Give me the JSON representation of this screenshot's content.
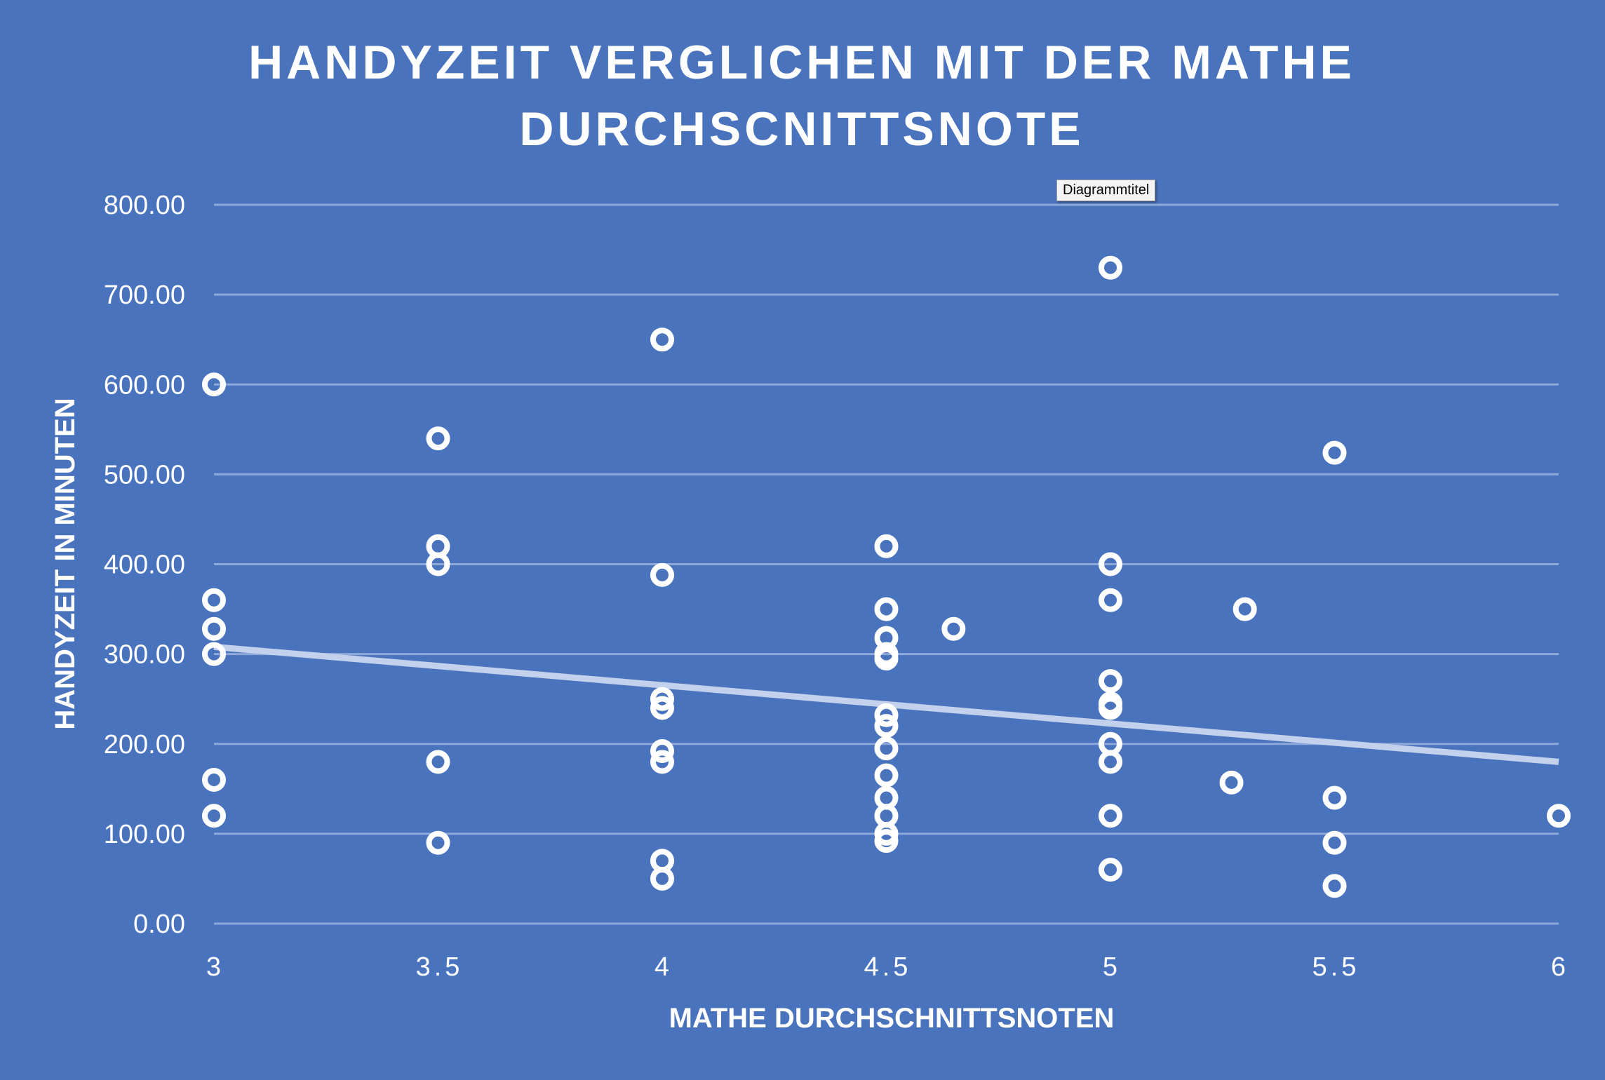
{
  "chart_data": {
    "type": "scatter",
    "title_lines": [
      "HANDYZEIT VERGLICHEN MIT DER MATHE",
      "DURCHSCNITTSNOTE"
    ],
    "xlabel": "MATHE DURCHSCHNITTSNOTEN",
    "ylabel": "HANDYZEIT IN MINUTEN",
    "xlim": [
      3,
      6
    ],
    "ylim": [
      0,
      800
    ],
    "x_ticks": [
      "3",
      "3.5",
      "4",
      "4.5",
      "5",
      "5.5",
      "6"
    ],
    "x_tick_values": [
      3,
      3.5,
      4,
      4.5,
      5,
      5.5,
      6
    ],
    "y_ticks": [
      "0.00",
      "100.00",
      "200.00",
      "300.00",
      "400.00",
      "500.00",
      "600.00",
      "700.00",
      "800.00"
    ],
    "y_tick_values": [
      0,
      100,
      200,
      300,
      400,
      500,
      600,
      700,
      800
    ],
    "grid": true,
    "legend": "none",
    "trendline": {
      "type": "linear",
      "from": [
        3,
        308
      ],
      "to": [
        6,
        180
      ]
    },
    "series": [
      {
        "points": [
          [
            3,
            600
          ],
          [
            3,
            360
          ],
          [
            3,
            328
          ],
          [
            3,
            300
          ],
          [
            3,
            160
          ],
          [
            3,
            120
          ],
          [
            3.5,
            540
          ],
          [
            3.5,
            420
          ],
          [
            3.5,
            400
          ],
          [
            3.5,
            180
          ],
          [
            3.5,
            90
          ],
          [
            4,
            650
          ],
          [
            4,
            388
          ],
          [
            4,
            250
          ],
          [
            4,
            240
          ],
          [
            4,
            192
          ],
          [
            4,
            180
          ],
          [
            4,
            70
          ],
          [
            4,
            50
          ],
          [
            4.5,
            420
          ],
          [
            4.5,
            350
          ],
          [
            4.5,
            318
          ],
          [
            4.5,
            300
          ],
          [
            4.5,
            295
          ],
          [
            4.5,
            232
          ],
          [
            4.5,
            220
          ],
          [
            4.5,
            195
          ],
          [
            4.5,
            165
          ],
          [
            4.5,
            140
          ],
          [
            4.5,
            120
          ],
          [
            4.5,
            100
          ],
          [
            4.5,
            92
          ],
          [
            4.65,
            328
          ],
          [
            5,
            730
          ],
          [
            5,
            400
          ],
          [
            5,
            360
          ],
          [
            5,
            270
          ],
          [
            5,
            245
          ],
          [
            5,
            240
          ],
          [
            5,
            200
          ],
          [
            5,
            180
          ],
          [
            5,
            120
          ],
          [
            5,
            60
          ],
          [
            5.27,
            157
          ],
          [
            5.3,
            350
          ],
          [
            5.5,
            524
          ],
          [
            5.5,
            140
          ],
          [
            5.5,
            90
          ],
          [
            5.5,
            42
          ],
          [
            6,
            120
          ]
        ]
      }
    ],
    "colors": {
      "background": "#4a73be",
      "marker": "#ffffff",
      "grid": "#8ea8da",
      "trendline": "#c3d1ec"
    }
  },
  "tooltip": {
    "text": "Diagrammtitel"
  }
}
